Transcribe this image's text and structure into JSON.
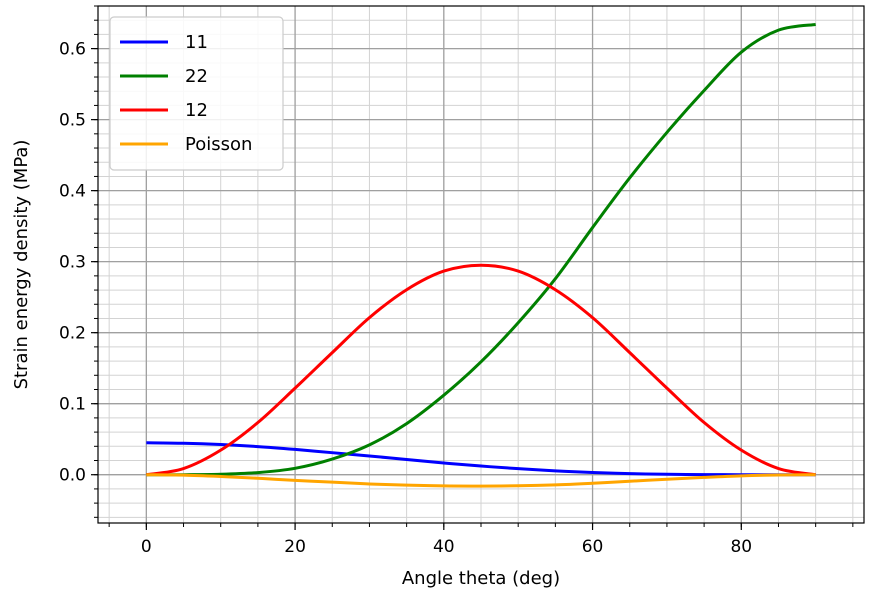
{
  "chart_data": {
    "type": "line",
    "title": "",
    "xlabel": "Angle theta (deg)",
    "ylabel": "Strain energy density (MPa)",
    "xlim": [
      -6.5,
      96.5
    ],
    "ylim": [
      -0.068,
      0.66
    ],
    "x_ticks": [
      0,
      20,
      40,
      60,
      80
    ],
    "x_tick_labels": [
      "0",
      "20",
      "40",
      "60",
      "80"
    ],
    "y_ticks": [
      0.0,
      0.1,
      0.2,
      0.3,
      0.4,
      0.5,
      0.6
    ],
    "y_tick_labels": [
      "0.0",
      "0.1",
      "0.2",
      "0.3",
      "0.4",
      "0.5",
      "0.6"
    ],
    "x_minor_step": 5,
    "y_minor_step": 0.02,
    "grid": true,
    "legend_position": "top-left",
    "x": [
      0,
      5,
      10,
      15,
      20,
      25,
      30,
      35,
      40,
      45,
      50,
      55,
      60,
      65,
      70,
      75,
      80,
      85,
      90
    ],
    "series": [
      {
        "name": "11",
        "color": "#0000ff",
        "values": [
          0.045,
          0.0443,
          0.0425,
          0.0396,
          0.0356,
          0.031,
          0.0264,
          0.0214,
          0.0165,
          0.0122,
          0.0085,
          0.0054,
          0.0031,
          0.0015,
          0.0006,
          0.0002,
          0.0,
          0.0,
          0.0
        ]
      },
      {
        "name": "22",
        "color": "#008000",
        "values": [
          0.0,
          0.0,
          0.0006,
          0.003,
          0.009,
          0.022,
          0.042,
          0.072,
          0.112,
          0.159,
          0.214,
          0.276,
          0.348,
          0.418,
          0.482,
          0.541,
          0.595,
          0.626,
          0.634
        ]
      },
      {
        "name": "12",
        "color": "#ff0000",
        "values": [
          0.0,
          0.0087,
          0.0346,
          0.0735,
          0.1219,
          0.1719,
          0.2212,
          0.2605,
          0.2867,
          0.295,
          0.2867,
          0.2605,
          0.2212,
          0.1719,
          0.1219,
          0.0735,
          0.0346,
          0.0087,
          0.0
        ]
      },
      {
        "name": "Poisson",
        "color": "#ffa500",
        "values": [
          0.0,
          -0.0006,
          -0.0025,
          -0.005,
          -0.008,
          -0.0105,
          -0.013,
          -0.0146,
          -0.0158,
          -0.016,
          -0.0156,
          -0.0143,
          -0.012,
          -0.0092,
          -0.0064,
          -0.0038,
          -0.0016,
          -0.0004,
          0.0
        ]
      }
    ]
  }
}
